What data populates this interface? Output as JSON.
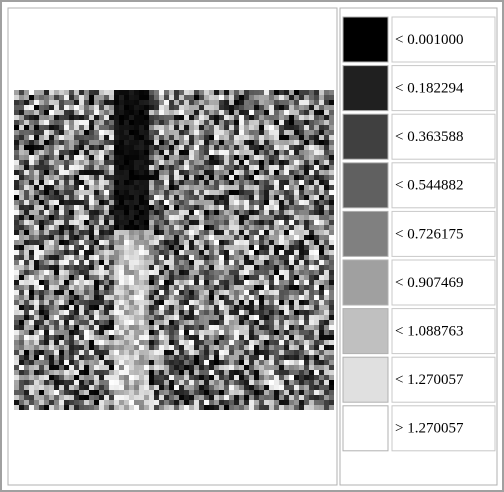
{
  "legend": {
    "items": [
      {
        "label": "< 0.001000",
        "color": "#000000"
      },
      {
        "label": "< 0.182294",
        "color": "#202020"
      },
      {
        "label": "< 0.363588",
        "color": "#404040"
      },
      {
        "label": "< 0.544882",
        "color": "#606060"
      },
      {
        "label": "< 0.726175",
        "color": "#808080"
      },
      {
        "label": "< 0.907469",
        "color": "#a0a0a0"
      },
      {
        "label": "< 1.088763",
        "color": "#c0c0c0"
      },
      {
        "label": "< 1.270057",
        "color": "#e0e0e0"
      },
      {
        "label": "> 1.270057",
        "color": "#ffffff"
      }
    ]
  }
}
